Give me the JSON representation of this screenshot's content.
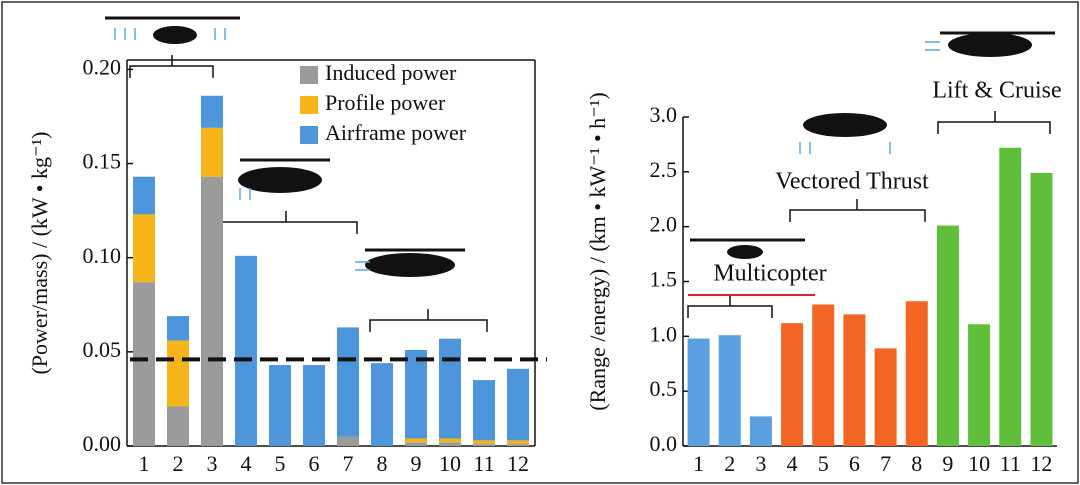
{
  "chart_data": [
    {
      "type": "bar",
      "stacked": true,
      "ylabel": "(Power/mass) / (kW • kg⁻¹)",
      "categories": [
        "1",
        "2",
        "3",
        "4",
        "5",
        "6",
        "7",
        "8",
        "9",
        "10",
        "11",
        "12"
      ],
      "series": [
        {
          "name": "Induced power",
          "color": "#9b9b9b",
          "values": [
            0.087,
            0.021,
            0.143,
            0,
            0,
            0,
            0.005,
            0,
            0.002,
            0.002,
            0.001,
            0.001
          ]
        },
        {
          "name": "Profile power",
          "color": "#f5b51b",
          "values": [
            0.036,
            0.035,
            0.026,
            0,
            0,
            0,
            0,
            0,
            0.002,
            0.002,
            0.002,
            0.002
          ]
        },
        {
          "name": "Airframe power",
          "color": "#4d96dc",
          "values": [
            0.02,
            0.013,
            0.017,
            0.101,
            0.043,
            0.043,
            0.058,
            0.044,
            0.047,
            0.053,
            0.032,
            0.038
          ]
        }
      ],
      "reference_line": 0.046,
      "ylim": [
        0,
        0.205
      ],
      "yticks": [
        {
          "value": 0,
          "label": "0.00"
        },
        0.05,
        {
          "value": 0.1,
          "label": "0.10"
        },
        0.15,
        {
          "value": 0.2,
          "label": "0.20"
        }
      ],
      "legend": "upper right"
    },
    {
      "type": "bar",
      "ylabel": "(Range /energy) / (km • kW⁻¹ • h⁻¹)",
      "categories": [
        "1",
        "2",
        "3",
        "4",
        "5",
        "6",
        "7",
        "8",
        "9",
        "10",
        "11",
        "12"
      ],
      "values": [
        0.98,
        1.01,
        0.27,
        1.12,
        1.29,
        1.2,
        0.89,
        1.32,
        2.01,
        1.11,
        2.72,
        2.49
      ],
      "colors": [
        "#5aa0e0",
        "#5aa0e0",
        "#5aa0e0",
        "#f26522",
        "#f26522",
        "#f26522",
        "#f26522",
        "#f26522",
        "#5fbf3a",
        "#5fbf3a",
        "#5fbf3a",
        "#5fbf3a"
      ],
      "annotations": [
        "Multicopter",
        "Vectored Thrust",
        "Lift & Cruise"
      ],
      "ylim": [
        0,
        3.0
      ],
      "yticks": [
        {
          "value": 0,
          "label": "0.0"
        },
        0.5,
        {
          "value": 1,
          "label": "1.0"
        },
        1.5,
        {
          "value": 2,
          "label": "2.0"
        },
        2.5,
        {
          "value": 3,
          "label": "3.0"
        }
      ]
    }
  ]
}
